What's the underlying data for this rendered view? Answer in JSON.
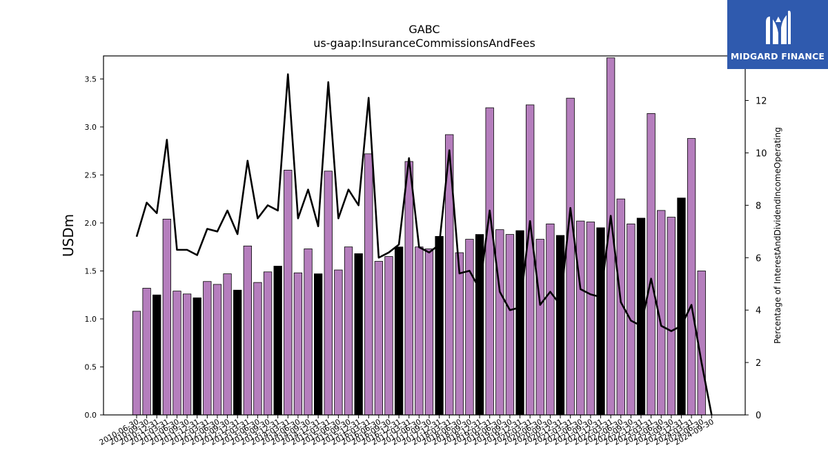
{
  "logo": {
    "text": "MIDGARD FINANCE",
    "color": "#2f5aae",
    "icon": "midgard-m-logo-icon"
  },
  "chart_data": {
    "type": "bar",
    "title": "GABC",
    "subtitle": "us-gaap:InsuranceCommissionsAndFees",
    "ylabel": "USDm",
    "ylabel_right": "Percentage of InterestAndDividendIncomeOperating",
    "ylim": [
      0,
      3.74
    ],
    "y2lim": [
      0,
      13.7
    ],
    "yticks": [
      0.0,
      0.5,
      1.0,
      1.5,
      2.0,
      2.5,
      3.0,
      3.5
    ],
    "y2ticks": [
      0,
      2,
      4,
      6,
      8,
      10,
      12
    ],
    "grid": false,
    "colors": {
      "bar": "#b57ebd",
      "bar_highlight": "#000000",
      "line": "#000000"
    },
    "categories": [
      "2010-06-30",
      "2010-09-30",
      "2010-12-31",
      "2011-03-31",
      "2011-06-30",
      "2011-09-30",
      "2011-12-31",
      "2012-03-31",
      "2012-06-30",
      "2012-09-30",
      "2012-12-31",
      "2013-03-31",
      "2013-06-30",
      "2013-09-30",
      "2013-12-31",
      "2014-03-31",
      "2014-06-30",
      "2014-09-30",
      "2014-12-31",
      "2015-03-31",
      "2015-06-30",
      "2015-09-30",
      "2015-12-31",
      "2016-03-31",
      "2016-06-30",
      "2016-09-30",
      "2016-12-31",
      "2017-03-31",
      "2017-06-30",
      "2017-09-30",
      "2017-12-31",
      "2018-03-31",
      "2018-06-30",
      "2018-09-30",
      "2018-12-31",
      "2019-03-31",
      "2019-06-30",
      "2019-09-30",
      "2019-12-31",
      "2020-03-31",
      "2020-06-30",
      "2020-09-30",
      "2020-12-31",
      "2021-03-31",
      "2021-06-30",
      "2021-09-30",
      "2021-12-31",
      "2022-03-31",
      "2022-06-30",
      "2022-09-30",
      "2022-12-31",
      "2023-03-31",
      "2023-06-30",
      "2023-09-30",
      "2023-12-31",
      "2024-03-31",
      "2024-06-30",
      "2024-09-30"
    ],
    "tick_labels": [
      "2010-06-30",
      "2010-09-30",
      "2010-12-31",
      "2011-03-31",
      "2011-06-30",
      "2011-09-30",
      "2011-12-31",
      "2012-03-31",
      "2012-06-30",
      "2012-09-30",
      "2012-12-31",
      "2013-03-31",
      "2013-06-30",
      "2013-09-30",
      "2013-12-31",
      "2014-03-31",
      "2014-06-30",
      "2014-09-30",
      "2014-12-31",
      "2015-03-31",
      "2015-06-30",
      "2015-09-30",
      "2015-12-31",
      "2016-03-31",
      "2016-06-30",
      "2016-09-30",
      "2016-12-31",
      "2017-03-31",
      "2017-06-30",
      "2017-09-30",
      "2017-12-31",
      "2018-03-31",
      "2018-06-30",
      "2018-09-30",
      "2018-12-31",
      "2019-03-31",
      "2019-06-30",
      "2019-09-30",
      "2019-12-31",
      "2020-03-31",
      "2020-06-30",
      "2020-09-30",
      "2020-12-31",
      "2021-03-31",
      "2021-06-30",
      "2021-09-30",
      "2021-12-31",
      "2022-03-31",
      "2022-06-30",
      "2022-09-30",
      "2022-12-31",
      "2023-03-31",
      "2023-06-30",
      "2023-09-30",
      "2023-12-31",
      "2024-03-31",
      "2024-06-30",
      "2024-09-30"
    ],
    "series": [
      {
        "type": "bar",
        "axis": "left",
        "values": [
          1.08,
          1.32,
          1.25,
          2.04,
          1.29,
          1.26,
          1.22,
          1.39,
          1.36,
          1.47,
          1.3,
          1.76,
          1.38,
          1.49,
          1.55,
          2.55,
          1.48,
          1.73,
          1.47,
          2.54,
          1.51,
          1.75,
          1.68,
          2.72,
          1.6,
          1.65,
          1.75,
          2.64,
          1.75,
          1.73,
          1.86,
          2.92,
          1.69,
          1.83,
          1.88,
          3.2,
          1.93,
          1.88,
          1.92,
          3.23,
          1.83,
          1.99,
          1.87,
          3.3,
          2.02,
          2.01,
          1.95,
          3.72,
          2.25,
          1.99,
          2.05,
          3.14,
          2.13,
          2.06,
          2.26,
          2.88,
          1.5,
          null
        ],
        "highlight": [
          false,
          false,
          true,
          false,
          false,
          false,
          true,
          false,
          false,
          false,
          true,
          false,
          false,
          false,
          true,
          false,
          false,
          false,
          true,
          false,
          false,
          false,
          true,
          false,
          false,
          false,
          true,
          false,
          false,
          false,
          true,
          false,
          false,
          false,
          true,
          false,
          false,
          false,
          true,
          false,
          false,
          false,
          true,
          false,
          false,
          false,
          true,
          false,
          false,
          false,
          true,
          false,
          false,
          false,
          true,
          false,
          false,
          false
        ]
      },
      {
        "type": "line",
        "axis": "right",
        "values": [
          6.8,
          8.1,
          7.7,
          10.5,
          6.3,
          6.3,
          6.1,
          7.1,
          7.0,
          7.8,
          6.9,
          9.7,
          7.5,
          8.0,
          7.8,
          13.0,
          7.5,
          8.6,
          7.2,
          12.7,
          7.5,
          8.6,
          8.0,
          12.1,
          6.0,
          6.2,
          6.5,
          9.8,
          6.4,
          6.2,
          6.5,
          10.1,
          5.4,
          5.5,
          4.8,
          7.8,
          4.7,
          4.0,
          4.1,
          7.4,
          4.2,
          4.7,
          4.2,
          7.9,
          4.8,
          4.6,
          4.5,
          7.6,
          4.3,
          3.6,
          3.4,
          5.2,
          3.4,
          3.2,
          3.4,
          4.2,
          2.0,
          0.0
        ]
      }
    ]
  }
}
